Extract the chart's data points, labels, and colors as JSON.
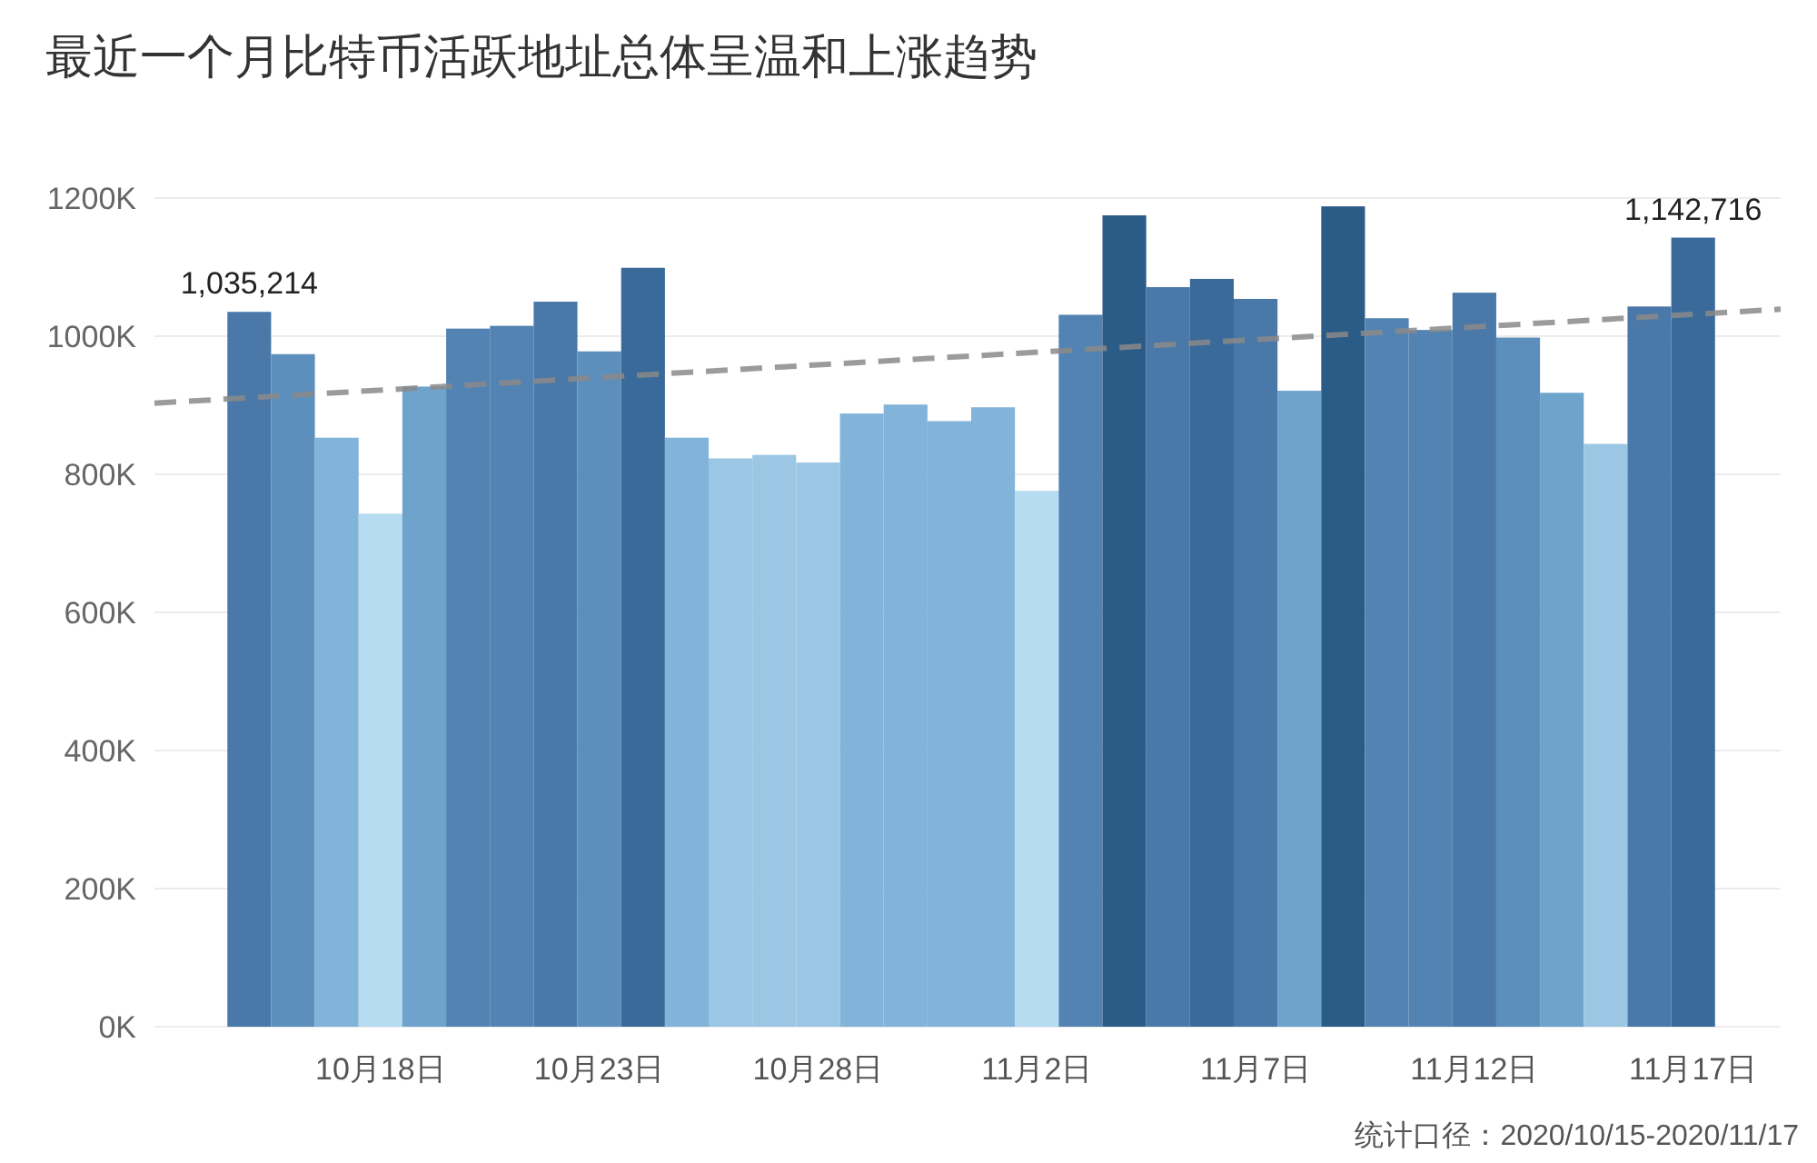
{
  "chart_data": {
    "type": "bar",
    "title": "最近一个月比特币活跃地址总体呈温和上涨趋势",
    "x": [
      "2020-10-15",
      "2020-10-16",
      "2020-10-17",
      "2020-10-18",
      "2020-10-19",
      "2020-10-20",
      "2020-10-21",
      "2020-10-22",
      "2020-10-23",
      "2020-10-24",
      "2020-10-25",
      "2020-10-26",
      "2020-10-27",
      "2020-10-28",
      "2020-10-29",
      "2020-10-30",
      "2020-10-31",
      "2020-11-01",
      "2020-11-02",
      "2020-11-03",
      "2020-11-04",
      "2020-11-05",
      "2020-11-06",
      "2020-11-07",
      "2020-11-08",
      "2020-11-09",
      "2020-11-10",
      "2020-11-11",
      "2020-11-12",
      "2020-11-13",
      "2020-11-14",
      "2020-11-15",
      "2020-11-16",
      "2020-11-17"
    ],
    "series": [
      {
        "values": [
          1035214,
          974000,
          853000,
          743000,
          927000,
          1011000,
          1015000,
          1050000,
          978000,
          1099000,
          853000,
          823000,
          828000,
          817000,
          888000,
          901000,
          877000,
          897000,
          776000,
          1031000,
          1175000,
          1071000,
          1083000,
          1054000,
          921000,
          1188000,
          1026000,
          1009000,
          1063000,
          998000,
          918000,
          844000,
          1043000,
          1142716
        ],
        "colors": [
          "#4a78a8",
          "#5d8fbd",
          "#82b3d9",
          "#b5dcf0",
          "#6ea3cc",
          "#5383b3",
          "#5383b3",
          "#4a78a8",
          "#5d8fbd",
          "#3a6a9a",
          "#82b3d9",
          "#9bc6e4",
          "#9bc6e4",
          "#9bc6e4",
          "#82b3d9",
          "#82b3d9",
          "#82b3d9",
          "#82b3d9",
          "#b5dcf0",
          "#5383b3",
          "#2b5b87",
          "#4a78a8",
          "#3a6a9a",
          "#4a78a8",
          "#6ea3cc",
          "#2b5b87",
          "#5383b3",
          "#5383b3",
          "#4a78a8",
          "#5d8fbd",
          "#6ea3cc",
          "#9bc6e4",
          "#4a78a8",
          "#3a6a9a"
        ],
        "value_labels": [
          "1,035,214",
          null,
          null,
          null,
          null,
          null,
          null,
          null,
          null,
          null,
          null,
          null,
          null,
          null,
          null,
          null,
          null,
          null,
          null,
          null,
          null,
          null,
          null,
          null,
          null,
          null,
          null,
          null,
          null,
          null,
          null,
          null,
          null,
          "1,142,716"
        ]
      },
      {
        "type": "line",
        "x": [
          "2020-10-12T20:00",
          "2020-11-19T00:00"
        ],
        "values": [
          903000,
          1039000
        ],
        "color": "#8a8a8a",
        "line_style": "dashed"
      }
    ],
    "xlim": [
      "2020-10-12T20:00",
      "2020-11-19T00:00"
    ],
    "xticks": [
      {
        "value": "2020-10-18",
        "label": "10月18日"
      },
      {
        "value": "2020-10-23",
        "label": "10月23日"
      },
      {
        "value": "2020-10-28",
        "label": "10月28日"
      },
      {
        "value": "2020-11-02",
        "label": "11月2日"
      },
      {
        "value": "2020-11-07",
        "label": "11月7日"
      },
      {
        "value": "2020-11-12",
        "label": "11月12日"
      },
      {
        "value": "2020-11-17",
        "label": "11月17日"
      }
    ],
    "ylim": [
      0,
      1200000
    ],
    "yticks": [
      {
        "value": 0,
        "label": "0K"
      },
      {
        "value": 200000,
        "label": "200K"
      },
      {
        "value": 400000,
        "label": "400K"
      },
      {
        "value": 600000,
        "label": "600K"
      },
      {
        "value": 800000,
        "label": "800K"
      },
      {
        "value": 1000000,
        "label": "1000K"
      },
      {
        "value": 1200000,
        "label": "1200K"
      }
    ],
    "grid": "y",
    "annotations": [
      "统计口径：2020/10/15-2020/11/17"
    ]
  }
}
